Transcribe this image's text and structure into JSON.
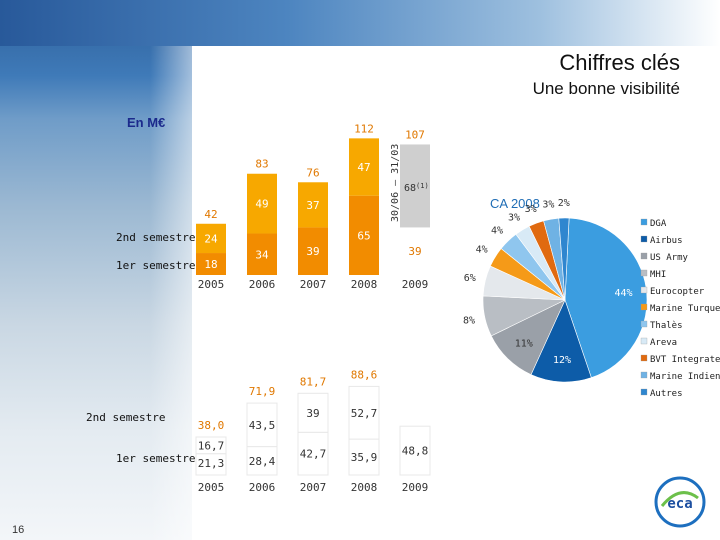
{
  "page": {
    "title": "Chiffres clés",
    "subtitle": "Une bonne visibilité",
    "unit_label": "En M€",
    "page_number": "16",
    "ca_title": "CA 2008"
  },
  "colors": {
    "orange": "#f28c00",
    "orange_light": "#f7a800",
    "grey": "#cfcfcf",
    "blue_light": "#3b9de0",
    "label_orange": "#e07800",
    "text_white": "#ffffff"
  },
  "chart_data": [
    {
      "type": "bar",
      "title": "",
      "unit": "En M€",
      "categories": [
        "2005",
        "2006",
        "2007",
        "2008",
        "2009"
      ],
      "row_labels": {
        "first": "1er semestre",
        "second": "2nd semestre"
      },
      "series": [
        {
          "name": "1er semestre",
          "values": [
            18,
            34,
            39,
            65,
            39
          ]
        },
        {
          "name": "2nd semestre",
          "values": [
            24,
            49,
            37,
            47,
            null
          ]
        }
      ],
      "totals": [
        42,
        83,
        76,
        112,
        107
      ],
      "annotations": {
        "backlog_2009": "68",
        "backlog_note": "(1)",
        "vertical_note": "30/06 – 31/03"
      },
      "ylim": [
        0,
        120
      ]
    },
    {
      "type": "bar",
      "title": "",
      "categories": [
        "2005",
        "2006",
        "2007",
        "2008",
        "2009"
      ],
      "row_labels": {
        "first": "1er semestre",
        "second": "2nd semestre"
      },
      "series": [
        {
          "name": "1er semestre",
          "values": [
            21.3,
            28.4,
            42.7,
            35.9,
            48.8
          ]
        },
        {
          "name": "2nd semestre",
          "values": [
            16.7,
            43.5,
            39,
            52.7,
            null
          ]
        }
      ],
      "value_labels": {
        "first": [
          "21,3",
          "28,4",
          "42,7",
          "35,9",
          "48,8"
        ],
        "second": [
          "16,7",
          "43,5",
          "39",
          "52,7",
          ""
        ]
      },
      "totals": [
        "38,0",
        "71,9",
        "81,7",
        "88,6",
        ""
      ],
      "ylim": [
        0,
        100
      ]
    },
    {
      "type": "pie",
      "title": "CA 2008",
      "slices": [
        {
          "name": "DGA",
          "value": 44,
          "label": "44%",
          "color": "#3b9de0"
        },
        {
          "name": "Airbus",
          "value": 12,
          "label": "12%",
          "color": "#0d5ca8"
        },
        {
          "name": "US Army",
          "value": 11,
          "label": "11%",
          "color": "#9aa0a8"
        },
        {
          "name": "MHI",
          "value": 8,
          "label": "8%",
          "color": "#b9bec4"
        },
        {
          "name": "Eurocopter",
          "value": 6,
          "label": "6%",
          "color": "#e4e8ec"
        },
        {
          "name": "Marine Turque",
          "value": 4,
          "label": "4%",
          "color": "#f59a18"
        },
        {
          "name": "Thalès",
          "value": 4,
          "label": "4%",
          "color": "#8fc6ee"
        },
        {
          "name": "Areva",
          "value": 3,
          "label": "3%",
          "color": "#d8eaf6"
        },
        {
          "name": "BVT Integrated",
          "value": 3,
          "label": "3%",
          "color": "#e06a10"
        },
        {
          "name": "Marine Indienne",
          "value": 3,
          "label": "3%",
          "color": "#6fb2e4"
        },
        {
          "name": "Autres",
          "value": 2,
          "label": "2%",
          "color": "#2f86cf"
        }
      ]
    }
  ]
}
